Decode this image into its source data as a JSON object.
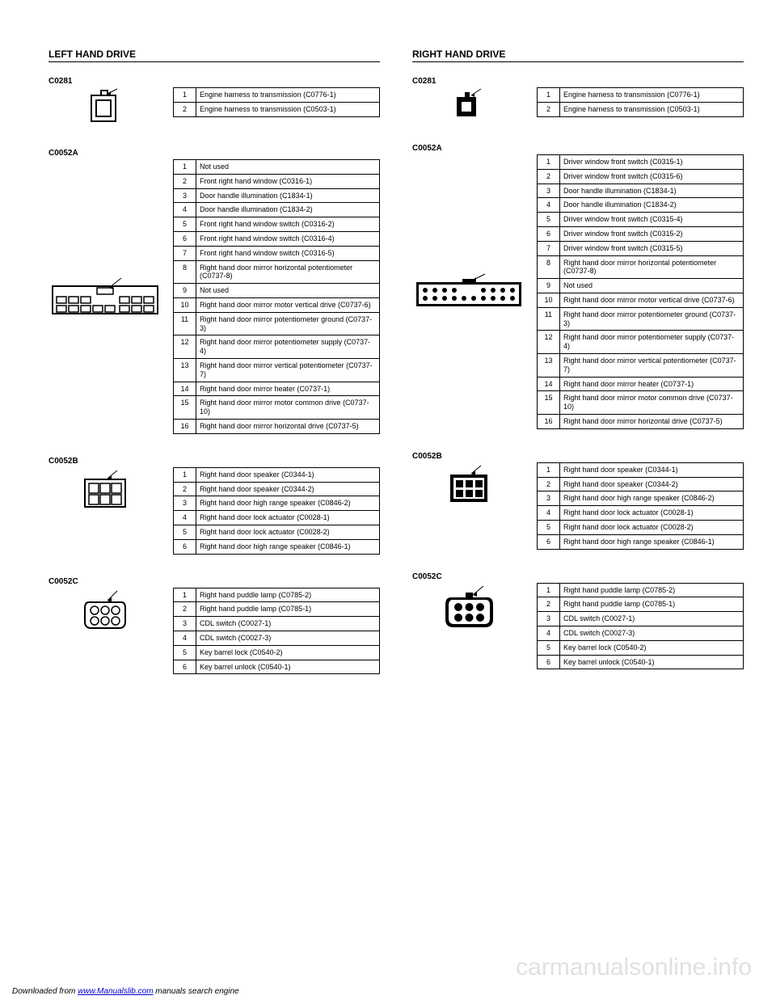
{
  "header_left": "LEFT HAND DRIVE",
  "header_right": "RIGHT HAND DRIVE",
  "footer_prefix": "Downloaded from ",
  "footer_link": "www.Manualslib.com",
  "footer_suffix": " manuals search engine",
  "watermark": "carmanualsonline.info",
  "left": [
    {
      "diagram": "small2",
      "table": [
        [
          "1",
          "Engine harness to transmission (C0776-1)"
        ],
        [
          "2",
          "Engine harness to transmission (C0503-1)"
        ]
      ]
    },
    {
      "diagram": "conn16",
      "big": true,
      "table": [
        [
          "1",
          "Not used"
        ],
        [
          "2",
          "Front right hand window (C0316-1)"
        ],
        [
          "3",
          "Door handle illumination (C1834-1)"
        ],
        [
          "4",
          "Door handle illumination (C1834-2)"
        ],
        [
          "5",
          "Front right hand window switch (C0316-2)"
        ],
        [
          "6",
          "Front right hand window switch (C0316-4)"
        ],
        [
          "7",
          "Front right hand window switch (C0316-5)"
        ],
        [
          "8",
          "Right hand door mirror horizontal potentiometer (C0737-8)"
        ],
        [
          "9",
          "Not used"
        ],
        [
          "10",
          "Right hand door mirror motor vertical drive (C0737-6)"
        ],
        [
          "11",
          "Right hand door mirror potentiometer ground (C0737-3)"
        ],
        [
          "12",
          "Right hand door mirror potentiometer supply (C0737-4)"
        ],
        [
          "13",
          "Right hand door mirror vertical potentiometer (C0737-7)"
        ],
        [
          "14",
          "Right hand door mirror heater (C0737-1)"
        ],
        [
          "15",
          "Right hand door mirror motor common drive (C0737-10)"
        ],
        [
          "16",
          "Right hand door mirror horizontal drive (C0737-5)"
        ]
      ]
    },
    {
      "diagram": "conn6a",
      "table": [
        [
          "1",
          "Right hand door speaker (C0344-1)"
        ],
        [
          "2",
          "Right hand door speaker (C0344-2)"
        ],
        [
          "3",
          "Right hand door high range speaker (C0846-2)"
        ],
        [
          "4",
          "Right hand door lock actuator (C0028-1)"
        ],
        [
          "5",
          "Right hand door lock actuator (C0028-2)"
        ],
        [
          "6",
          "Right hand door high range speaker (C0846-1)"
        ]
      ]
    },
    {
      "diagram": "conn6round",
      "table": [
        [
          "1",
          "Right hand puddle lamp (C0785-2)"
        ],
        [
          "2",
          "Right hand puddle lamp (C0785-1)"
        ],
        [
          "3",
          "CDL switch (C0027-1)"
        ],
        [
          "4",
          "CDL switch (C0027-3)"
        ],
        [
          "5",
          "Key barrel lock (C0540-2)"
        ],
        [
          "6",
          "Key barrel unlock (C0540-1)"
        ]
      ]
    }
  ],
  "right": [
    {
      "diagram": "small2b",
      "table": [
        [
          "1",
          "Engine harness to transmission (C0776-1)"
        ],
        [
          "2",
          "Engine harness to transmission (C0503-1)"
        ]
      ]
    },
    {
      "diagram": "conn16b",
      "big": true,
      "table": [
        [
          "1",
          "Driver window front switch (C0315-1)"
        ],
        [
          "2",
          "Driver window front switch (C0315-6)"
        ],
        [
          "3",
          "Door handle illumination (C1834-1)"
        ],
        [
          "4",
          "Door handle illumination (C1834-2)"
        ],
        [
          "5",
          "Driver window front switch (C0315-4)"
        ],
        [
          "6",
          "Driver window front switch (C0315-2)"
        ],
        [
          "7",
          "Driver window front switch (C0315-5)"
        ],
        [
          "8",
          "Right hand door mirror horizontal potentiometer (C0737-8)"
        ],
        [
          "9",
          "Not used"
        ],
        [
          "10",
          "Right hand door mirror motor vertical drive (C0737-6)"
        ],
        [
          "11",
          "Right hand door mirror potentiometer ground (C0737-3)"
        ],
        [
          "12",
          "Right hand door mirror potentiometer supply (C0737-4)"
        ],
        [
          "13",
          "Right hand door mirror vertical potentiometer (C0737-7)"
        ],
        [
          "14",
          "Right hand door mirror heater (C0737-1)"
        ],
        [
          "15",
          "Right hand door mirror motor common drive (C0737-10)"
        ],
        [
          "16",
          "Right hand door mirror horizontal drive (C0737-5)"
        ]
      ]
    },
    {
      "diagram": "conn6c",
      "table": [
        [
          "1",
          "Right hand door speaker (C0344-1)"
        ],
        [
          "2",
          "Right hand door speaker (C0344-2)"
        ],
        [
          "3",
          "Right hand door high range speaker (C0846-2)"
        ],
        [
          "4",
          "Right hand door lock actuator (C0028-1)"
        ],
        [
          "5",
          "Right hand door lock actuator (C0028-2)"
        ],
        [
          "6",
          "Right hand door high range speaker (C0846-1)"
        ]
      ]
    },
    {
      "diagram": "conn6roundb",
      "table": [
        [
          "1",
          "Right hand puddle lamp (C0785-2)"
        ],
        [
          "2",
          "Right hand puddle lamp (C0785-1)"
        ],
        [
          "3",
          "CDL switch (C0027-1)"
        ],
        [
          "4",
          "CDL switch (C0027-3)"
        ],
        [
          "5",
          "Key barrel lock (C0540-2)"
        ],
        [
          "6",
          "Key barrel unlock (C0540-1)"
        ]
      ]
    }
  ],
  "labels": {
    "c0281": "C0281",
    "c0052a": "C0052A",
    "c0052b": "C0052B",
    "c0052c": "C0052C"
  }
}
